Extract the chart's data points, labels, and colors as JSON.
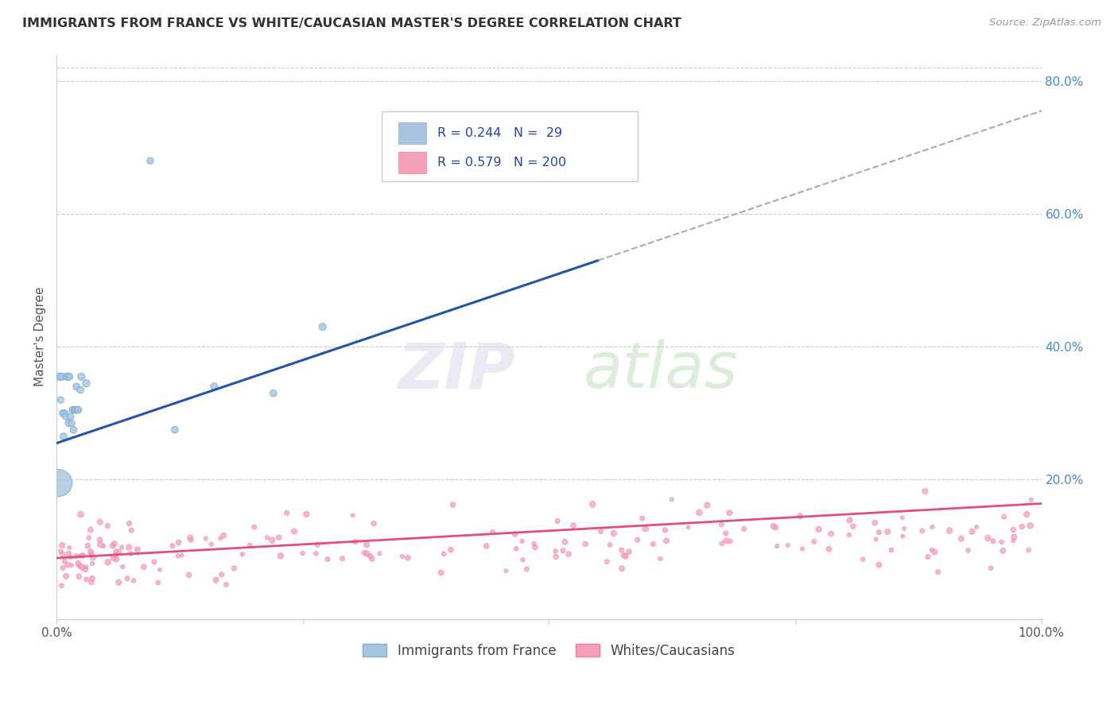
{
  "title": "IMMIGRANTS FROM FRANCE VS WHITE/CAUCASIAN MASTER'S DEGREE CORRELATION CHART",
  "source": "Source: ZipAtlas.com",
  "ylabel": "Master's Degree",
  "blue_color": "#A8C4E0",
  "blue_edge_color": "#7AAFD4",
  "pink_color": "#F4A0B8",
  "pink_edge_color": "#F080A0",
  "blue_line_color": "#2255AA",
  "pink_line_color": "#E0507A",
  "dash_line_color": "#AAAAAA",
  "watermark_zip_color": "#DDDDEE",
  "watermark_atlas_color": "#BBDDBB",
  "right_tick_color": "#4488CC",
  "bg_color": "#FFFFFF",
  "grid_color": "#CCCCCC",
  "title_color": "#333333",
  "source_color": "#999999",
  "legend_text_color": "#2244AA"
}
